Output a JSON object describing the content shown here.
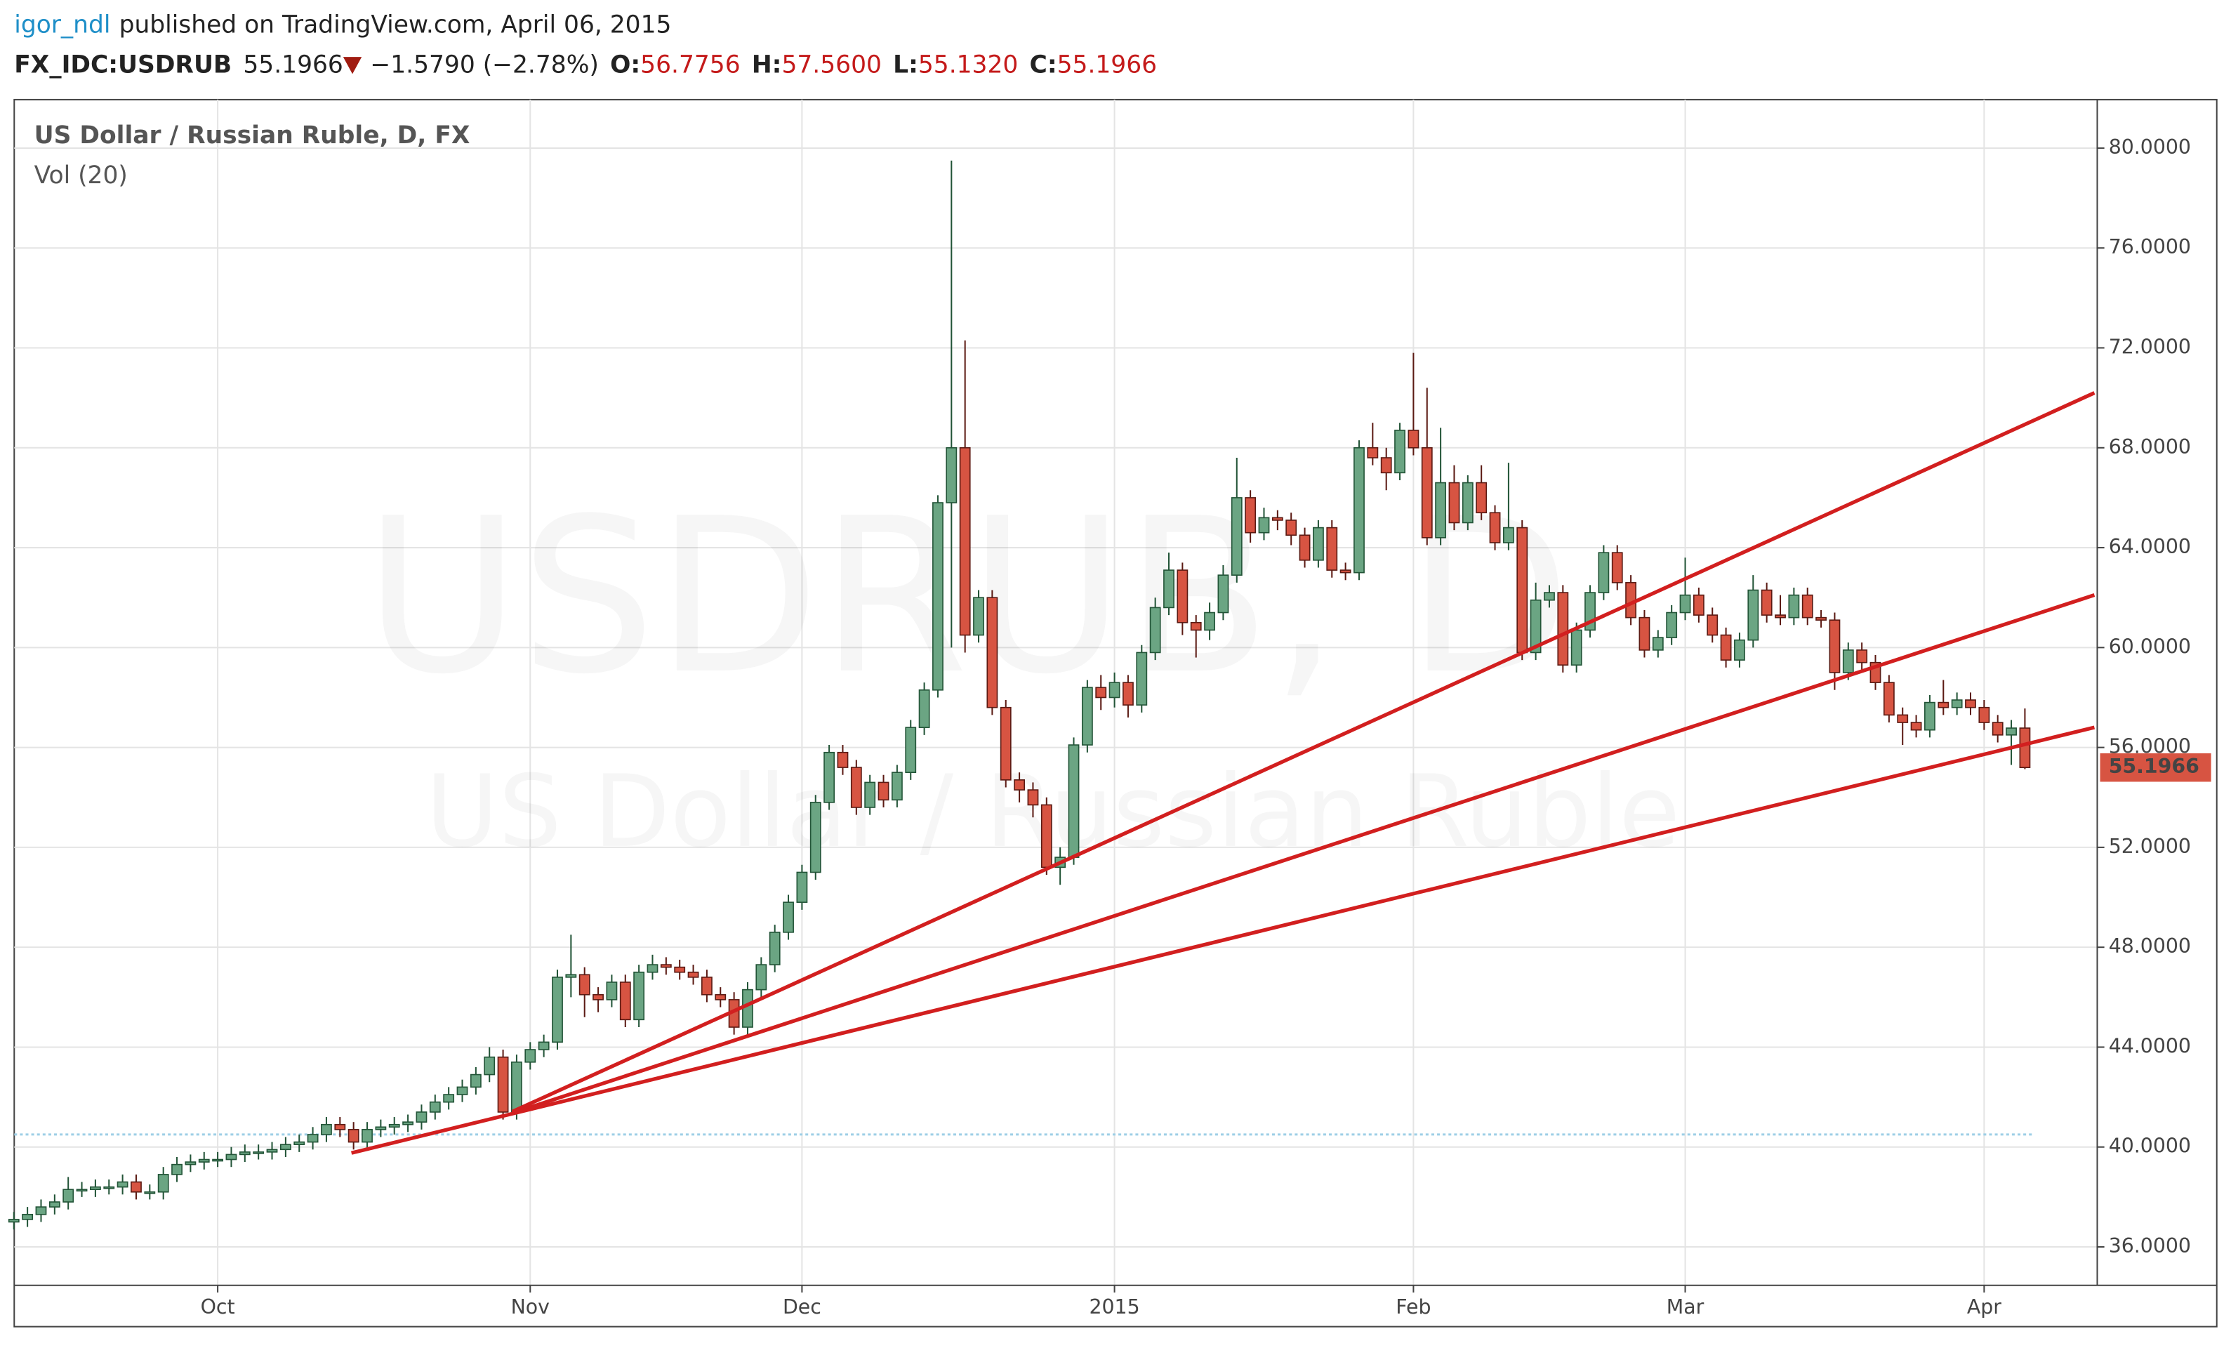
{
  "header": {
    "author": "igor_ndl",
    "published": "published on TradingView.com, April 06, 2015",
    "symbol": "FX_IDC:USDRUB",
    "last": "55.1966",
    "change": "−1.5790 (−2.78%)",
    "ohlc": [
      {
        "label": "O:",
        "value": "56.7756"
      },
      {
        "label": "H:",
        "value": "57.5600"
      },
      {
        "label": "L:",
        "value": "55.1320"
      },
      {
        "label": "C:",
        "value": "55.1966"
      }
    ]
  },
  "chart_data": {
    "type": "candlestick",
    "title": "US Dollar / Russian Ruble, D, FX",
    "subtitle": "Vol (20)",
    "watermark": [
      "USDRUB, D",
      "US Dollar / Russian Ruble"
    ],
    "up_color": "#6ba583",
    "up_edge": "#225437",
    "down_color": "#d75442",
    "down_edge": "#5b1a13",
    "categories": [
      null,
      null,
      null,
      null,
      null,
      null,
      null,
      null,
      null,
      null,
      null,
      null,
      null,
      null,
      null,
      "Oct",
      null,
      null,
      null,
      null,
      null,
      null,
      null,
      null,
      null,
      null,
      null,
      null,
      null,
      null,
      null,
      null,
      null,
      null,
      null,
      null,
      null,
      null,
      "Nov",
      null,
      null,
      null,
      null,
      null,
      null,
      null,
      null,
      null,
      null,
      null,
      null,
      null,
      null,
      null,
      null,
      null,
      null,
      null,
      "Dec",
      null,
      null,
      null,
      null,
      null,
      null,
      null,
      null,
      null,
      null,
      null,
      null,
      null,
      null,
      null,
      null,
      null,
      null,
      null,
      null,
      null,
      null,
      "2015",
      null,
      null,
      null,
      null,
      null,
      null,
      null,
      null,
      null,
      null,
      null,
      null,
      null,
      null,
      null,
      null,
      null,
      null,
      null,
      null,
      null,
      "Feb",
      null,
      null,
      null,
      null,
      null,
      null,
      null,
      null,
      null,
      null,
      null,
      null,
      null,
      null,
      null,
      null,
      null,
      null,
      null,
      "Mar",
      null,
      null,
      null,
      null,
      null,
      null,
      null,
      null,
      null,
      null,
      null,
      null,
      null,
      null,
      null,
      null,
      null,
      null,
      null,
      null,
      null,
      "Apr",
      null,
      null,
      null
    ],
    "open": [
      37.0,
      37.1,
      37.3,
      37.6,
      37.8,
      38.3,
      38.3,
      38.4,
      38.4,
      38.6,
      38.2,
      38.2,
      38.9,
      39.3,
      39.4,
      39.5,
      39.5,
      39.7,
      39.8,
      39.8,
      39.9,
      40.1,
      40.2,
      40.5,
      40.9,
      40.7,
      40.2,
      40.7,
      40.8,
      40.9,
      41.0,
      41.4,
      41.8,
      42.1,
      42.4,
      42.9,
      43.6,
      41.4,
      43.4,
      43.9,
      44.2,
      46.8,
      46.9,
      46.1,
      45.9,
      46.6,
      45.1,
      47.0,
      47.3,
      47.2,
      47.0,
      46.8,
      46.1,
      45.9,
      44.8,
      46.3,
      47.3,
      48.6,
      49.8,
      51.0,
      53.8,
      55.8,
      55.2,
      53.6,
      54.6,
      53.9,
      55.0,
      56.8,
      58.3,
      65.8,
      68.0,
      60.5,
      62.0,
      57.6,
      54.7,
      54.3,
      53.7,
      51.2,
      51.6,
      56.1,
      58.4,
      58.0,
      58.6,
      57.7,
      59.8,
      61.6,
      63.1,
      61.0,
      60.7,
      61.4,
      62.9,
      66.0,
      64.6,
      65.2,
      65.1,
      64.5,
      63.5,
      64.8,
      63.1,
      63.0,
      68.0,
      67.6,
      67.0,
      68.7,
      68.0,
      64.4,
      66.6,
      65.0,
      66.6,
      65.4,
      64.2,
      64.8,
      59.8,
      61.9,
      62.2,
      59.3,
      60.7,
      62.2,
      63.8,
      62.6,
      61.2,
      59.9,
      60.4,
      61.4,
      62.1,
      61.3,
      60.5,
      59.5,
      60.3,
      62.3,
      61.3,
      61.2,
      62.1,
      61.2,
      61.1,
      59.0,
      59.9,
      59.4,
      58.6,
      57.3,
      57.0,
      56.7,
      57.8,
      57.6,
      57.9,
      57.6,
      57.0,
      56.5,
      56.7756
    ],
    "high": [
      37.4,
      37.6,
      37.9,
      38.1,
      38.8,
      38.6,
      38.7,
      38.7,
      38.9,
      38.9,
      38.5,
      39.2,
      39.6,
      39.7,
      39.8,
      39.8,
      40.0,
      40.1,
      40.1,
      40.2,
      40.4,
      40.5,
      40.8,
      41.2,
      41.2,
      41.0,
      41.0,
      41.1,
      41.2,
      41.3,
      41.7,
      42.1,
      42.4,
      42.7,
      43.2,
      44.0,
      43.9,
      43.7,
      44.2,
      44.5,
      47.1,
      48.5,
      47.2,
      46.4,
      46.9,
      46.9,
      47.3,
      47.7,
      47.6,
      47.5,
      47.3,
      47.1,
      46.4,
      46.2,
      46.6,
      47.6,
      48.9,
      50.1,
      51.3,
      54.1,
      56.1,
      56.1,
      55.5,
      54.9,
      54.9,
      55.3,
      57.1,
      58.6,
      66.1,
      79.5,
      72.3,
      62.3,
      62.3,
      57.9,
      55.0,
      54.6,
      54.0,
      52.0,
      56.4,
      58.7,
      58.9,
      59.0,
      58.9,
      60.1,
      62.0,
      63.8,
      63.4,
      61.3,
      61.8,
      63.3,
      67.6,
      66.3,
      65.6,
      65.5,
      65.4,
      64.8,
      65.1,
      65.1,
      63.4,
      68.3,
      69.0,
      68.0,
      69.0,
      71.8,
      70.4,
      68.8,
      67.3,
      66.9,
      67.3,
      65.7,
      67.4,
      65.1,
      62.6,
      62.5,
      62.5,
      61.0,
      62.5,
      64.1,
      64.1,
      62.9,
      61.5,
      60.7,
      61.7,
      63.6,
      62.4,
      61.6,
      60.8,
      60.6,
      62.9,
      62.6,
      62.1,
      62.4,
      62.4,
      61.5,
      61.4,
      60.2,
      60.2,
      59.7,
      58.9,
      57.6,
      57.3,
      58.1,
      58.7,
      58.2,
      58.2,
      57.9,
      57.3,
      57.1,
      57.56
    ],
    "low": [
      36.7,
      36.8,
      37.0,
      37.3,
      37.5,
      38.0,
      38.0,
      38.1,
      38.1,
      37.9,
      37.9,
      37.9,
      38.6,
      39.0,
      39.1,
      39.2,
      39.2,
      39.4,
      39.5,
      39.5,
      39.6,
      39.8,
      39.9,
      40.2,
      40.4,
      39.9,
      39.9,
      40.4,
      40.5,
      40.6,
      40.7,
      41.1,
      41.5,
      41.8,
      42.1,
      42.6,
      41.1,
      41.1,
      43.1,
      43.6,
      43.9,
      46.0,
      45.2,
      45.4,
      45.6,
      44.8,
      44.8,
      46.7,
      46.9,
      46.7,
      46.5,
      45.8,
      45.6,
      44.5,
      44.5,
      46.0,
      47.0,
      48.3,
      49.5,
      50.7,
      53.5,
      54.9,
      53.3,
      53.3,
      53.6,
      53.6,
      54.7,
      56.5,
      58.0,
      60.0,
      59.8,
      60.2,
      57.3,
      54.4,
      53.8,
      53.2,
      50.9,
      50.5,
      51.3,
      55.8,
      57.5,
      57.6,
      57.2,
      57.4,
      59.5,
      61.3,
      60.5,
      59.6,
      60.3,
      61.1,
      62.6,
      64.2,
      64.3,
      64.7,
      64.1,
      63.2,
      63.2,
      62.8,
      62.7,
      62.7,
      67.3,
      66.3,
      66.7,
      67.7,
      64.1,
      64.1,
      64.7,
      64.7,
      65.1,
      63.9,
      63.9,
      59.5,
      59.5,
      61.6,
      59.0,
      59.0,
      60.4,
      61.9,
      62.3,
      60.9,
      59.6,
      59.6,
      60.1,
      61.1,
      61.0,
      60.2,
      59.2,
      59.2,
      60.0,
      61.0,
      60.9,
      60.9,
      60.9,
      60.8,
      58.3,
      58.7,
      59.1,
      58.3,
      57.0,
      56.1,
      56.4,
      56.4,
      57.3,
      57.3,
      57.3,
      56.7,
      56.2,
      55.3,
      55.132
    ],
    "close": [
      37.1,
      37.3,
      37.6,
      37.8,
      38.3,
      38.3,
      38.4,
      38.4,
      38.6,
      38.2,
      38.2,
      38.9,
      39.3,
      39.4,
      39.5,
      39.5,
      39.7,
      39.8,
      39.8,
      39.9,
      40.1,
      40.2,
      40.5,
      40.9,
      40.7,
      40.2,
      40.7,
      40.8,
      40.9,
      41.0,
      41.4,
      41.8,
      42.1,
      42.4,
      42.9,
      43.6,
      41.4,
      43.4,
      43.9,
      44.2,
      46.8,
      46.9,
      46.1,
      45.9,
      46.6,
      45.1,
      47.0,
      47.3,
      47.2,
      47.0,
      46.8,
      46.1,
      45.9,
      44.8,
      46.3,
      47.3,
      48.6,
      49.8,
      51.0,
      53.8,
      55.8,
      55.2,
      53.6,
      54.6,
      53.9,
      55.0,
      56.8,
      58.3,
      65.8,
      68.0,
      60.5,
      62.0,
      57.6,
      54.7,
      54.3,
      53.7,
      51.2,
      51.6,
      56.1,
      58.4,
      58.0,
      58.6,
      57.7,
      59.8,
      61.6,
      63.1,
      61.0,
      60.7,
      61.4,
      62.9,
      66.0,
      64.6,
      65.2,
      65.1,
      64.5,
      63.5,
      64.8,
      63.1,
      63.0,
      68.0,
      67.6,
      67.0,
      68.7,
      68.0,
      64.4,
      66.6,
      65.0,
      66.6,
      65.4,
      64.2,
      64.8,
      59.8,
      61.9,
      62.2,
      59.3,
      60.7,
      62.2,
      63.8,
      62.6,
      61.2,
      59.9,
      60.4,
      61.4,
      62.1,
      61.3,
      60.5,
      59.5,
      60.3,
      62.3,
      61.3,
      61.2,
      62.1,
      61.2,
      61.1,
      59.0,
      59.9,
      59.4,
      58.6,
      57.3,
      57.0,
      56.7,
      57.8,
      57.6,
      57.9,
      57.6,
      57.0,
      56.5,
      56.7756,
      55.1966
    ],
    "ylim": [
      34.46,
      81.94
    ],
    "yticks": [
      {
        "value": 36,
        "label": "36.0000"
      },
      {
        "value": 40,
        "label": "40.0000"
      },
      {
        "value": 44,
        "label": "44.0000"
      },
      {
        "value": 48,
        "label": "48.0000"
      },
      {
        "value": 52,
        "label": "52.0000"
      },
      {
        "value": 56,
        "label": "56.0000"
      },
      {
        "value": 60,
        "label": "60.0000"
      },
      {
        "value": 64,
        "label": "64.0000"
      },
      {
        "value": 68,
        "label": "68.0000"
      },
      {
        "value": 72,
        "label": "72.0000"
      },
      {
        "value": 76,
        "label": "76.0000"
      },
      {
        "value": 80,
        "label": "80.0000"
      }
    ],
    "grid": true
  }
}
